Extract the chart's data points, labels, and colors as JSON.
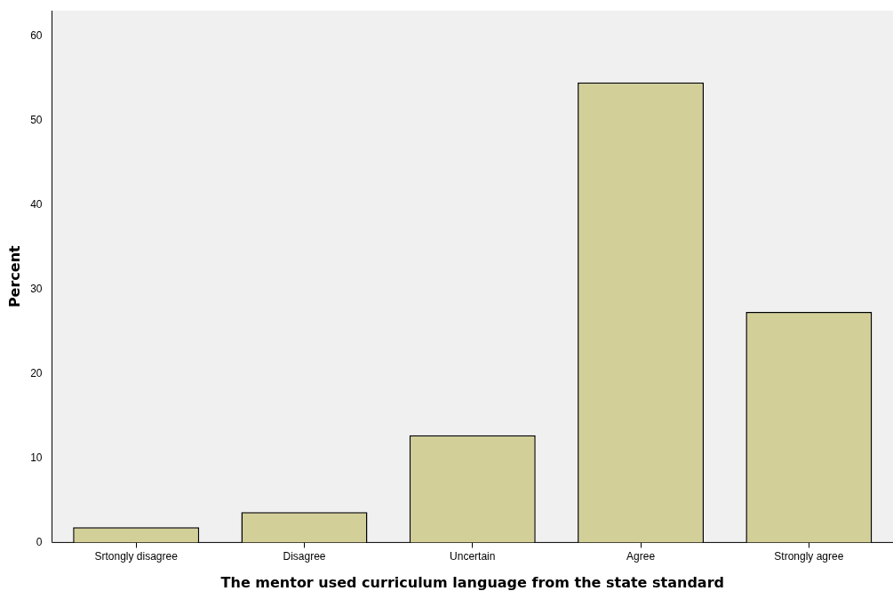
{
  "chart_data": {
    "type": "bar",
    "xlabel": "The mentor used curriculum language from the state standard",
    "ylabel": "Percent",
    "categories": [
      "Srtongly disagree",
      "Disagree",
      "Uncertain",
      "Agree",
      "Strongly agree"
    ],
    "values": [
      1.8,
      3.6,
      12.7,
      54.5,
      27.3
    ],
    "color": "#d3cf98",
    "ylim": [
      0,
      63
    ],
    "yticks": [
      0,
      10,
      20,
      30,
      40,
      50,
      60
    ],
    "grid": false,
    "legend": false
  }
}
